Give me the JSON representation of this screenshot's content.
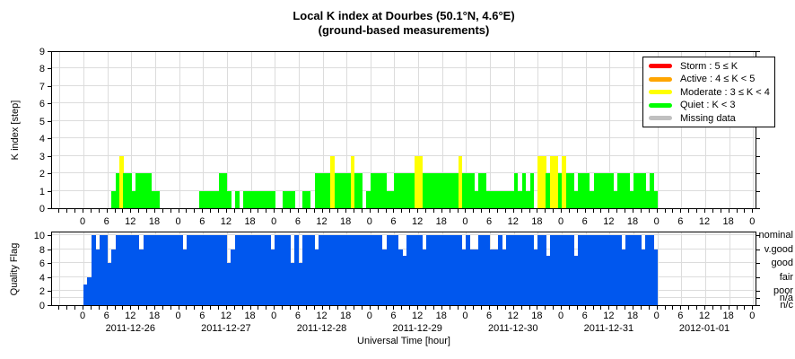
{
  "title": {
    "line1": "Local K index at Dourbes (50.1°N, 4.6°E)",
    "line2": "(ground-based measurements)"
  },
  "colors": {
    "storm": "#FF0000",
    "active": "#FFA500",
    "moderate": "#FFFF00",
    "quiet": "#00FF00",
    "missing": "#C0C0C0",
    "quality": "#0057EE",
    "grid": "#DCDCDC"
  },
  "legend": {
    "items": [
      {
        "name": "storm",
        "label": "Storm : 5 ≤ K",
        "color": "#FF0000"
      },
      {
        "name": "active",
        "label": "Active : 4 ≤ K < 5",
        "color": "#FFA500"
      },
      {
        "name": "moderate",
        "label": "Moderate : 3 ≤ K < 4",
        "color": "#FFFF00"
      },
      {
        "name": "quiet",
        "label": "Quiet : K < 3",
        "color": "#00FF00"
      },
      {
        "name": "missing",
        "label": "Missing data",
        "color": "#C0C0C0"
      }
    ]
  },
  "k_panel": {
    "ylabel": "K index [step]",
    "yticks": [
      0,
      1,
      2,
      3,
      4,
      5,
      6,
      7,
      8,
      9
    ],
    "ylim": [
      0,
      9
    ]
  },
  "quality_panel": {
    "ylabel": "Quality Flag",
    "yticks": [
      0,
      2,
      4,
      6,
      8,
      10
    ],
    "ylim": [
      0,
      10
    ],
    "right_labels": [
      {
        "value": 10,
        "label": "nominal"
      },
      {
        "value": 8,
        "label": "v.good"
      },
      {
        "value": 6,
        "label": "good"
      },
      {
        "value": 4,
        "label": "fair"
      },
      {
        "value": 2,
        "label": "poor"
      },
      {
        "value": 1,
        "label": "n/a"
      },
      {
        "value": 0,
        "label": "n/c"
      }
    ]
  },
  "xaxis": {
    "xlabel": "Universal Time [hour]",
    "hour_labels": [
      0,
      6,
      12,
      18
    ],
    "dates": [
      "2011-12-26",
      "2011-12-27",
      "2011-12-28",
      "2011-12-29",
      "2011-12-30",
      "2011-12-31",
      "2012-01-01"
    ]
  },
  "chart_data": [
    {
      "type": "bar",
      "title": "Local K index at Dourbes (50.1°N, 4.6°E) (ground-based measurements)",
      "xlabel": "Universal Time [hour]",
      "ylabel": "K index [step]",
      "ylim": [
        0,
        9
      ],
      "grid": true,
      "legend_position": "top-right",
      "bar_width_hours": 1,
      "color_rule": "K<3 green (quiet), 3<=K<4 yellow (moderate), 4<=K<5 orange (active), K>=5 red (storm), gray missing",
      "categories_dates": [
        "2011-12-26",
        "2011-12-27",
        "2011-12-28",
        "2011-12-29",
        "2011-12-30",
        "2011-12-31",
        "2012-01-01"
      ],
      "k_index_by_day": {
        "2011-12-26": [
          0,
          0,
          0,
          0,
          0,
          0,
          0,
          1,
          2,
          3,
          2,
          2,
          1,
          2,
          2,
          2,
          2,
          1,
          1,
          0,
          0,
          0,
          0,
          0
        ],
        "2011-12-27": [
          0,
          0,
          0,
          0,
          0,
          1,
          1,
          1,
          1,
          1,
          2,
          2,
          1,
          0,
          1,
          0,
          1,
          1,
          1,
          1,
          1,
          1,
          1,
          1
        ],
        "2011-12-28": [
          0,
          0,
          1,
          1,
          1,
          0,
          0,
          1,
          1,
          0,
          2,
          2,
          2,
          2,
          3,
          2,
          2,
          2,
          2,
          3,
          2,
          2,
          0,
          1
        ],
        "2011-12-29": [
          2,
          2,
          2,
          2,
          1,
          1,
          2,
          2,
          2,
          2,
          2,
          3,
          3,
          2,
          2,
          2,
          2,
          2,
          2,
          2,
          2,
          2,
          3,
          2
        ],
        "2011-12-30": [
          2,
          2,
          1,
          2,
          2,
          1,
          1,
          1,
          1,
          1,
          1,
          1,
          2,
          1,
          2,
          1,
          2,
          0,
          3,
          3,
          2,
          3,
          3,
          2
        ],
        "2011-12-31": [
          3,
          2,
          2,
          1,
          2,
          2,
          2,
          1,
          2,
          2,
          2,
          2,
          2,
          1,
          2,
          2,
          2,
          1,
          2,
          2,
          2,
          1,
          2,
          1
        ],
        "2012-01-01": [
          null,
          null,
          null,
          null,
          null,
          null,
          null,
          null,
          null,
          null,
          null,
          null,
          null,
          null,
          null,
          null,
          null,
          null,
          null,
          null,
          null,
          null,
          null,
          null
        ]
      }
    },
    {
      "type": "bar",
      "ylabel": "Quality Flag",
      "ylim": [
        0,
        10
      ],
      "grid": true,
      "bar_width_hours": 1,
      "value_scale": "10=nominal, 8=v.good, 6=good, 4=fair, 2=poor, 1=n/a, 0=n/c",
      "quality_flag_by_day": {
        "2011-12-26": [
          3,
          4,
          10,
          8,
          10,
          10,
          6,
          8,
          10,
          10,
          10,
          10,
          10,
          10,
          8,
          10,
          10,
          10,
          10,
          10,
          10,
          10,
          10,
          10
        ],
        "2011-12-27": [
          10,
          8,
          10,
          10,
          10,
          10,
          10,
          10,
          10,
          10,
          10,
          10,
          6,
          8,
          10,
          10,
          10,
          10,
          10,
          10,
          10,
          10,
          10,
          8
        ],
        "2011-12-28": [
          10,
          10,
          10,
          10,
          6,
          10,
          6,
          10,
          10,
          10,
          8,
          10,
          10,
          10,
          10,
          10,
          10,
          10,
          10,
          10,
          10,
          10,
          10,
          10
        ],
        "2011-12-29": [
          10,
          10,
          10,
          8,
          10,
          10,
          10,
          8,
          7,
          10,
          10,
          10,
          10,
          8,
          10,
          10,
          10,
          10,
          10,
          10,
          10,
          10,
          10,
          8
        ],
        "2011-12-30": [
          10,
          8,
          8,
          10,
          10,
          10,
          8,
          8,
          10,
          8,
          10,
          10,
          10,
          10,
          10,
          10,
          10,
          8,
          10,
          10,
          7,
          10,
          10,
          10
        ],
        "2011-12-31": [
          10,
          10,
          10,
          7,
          10,
          10,
          10,
          10,
          10,
          10,
          10,
          10,
          10,
          10,
          10,
          8,
          10,
          10,
          10,
          10,
          8,
          10,
          10,
          8
        ],
        "2012-01-01": [
          null,
          null,
          null,
          null,
          null,
          null,
          null,
          null,
          null,
          null,
          null,
          null,
          null,
          null,
          null,
          null,
          null,
          null,
          null,
          null,
          null,
          null,
          null,
          null
        ]
      }
    }
  ]
}
